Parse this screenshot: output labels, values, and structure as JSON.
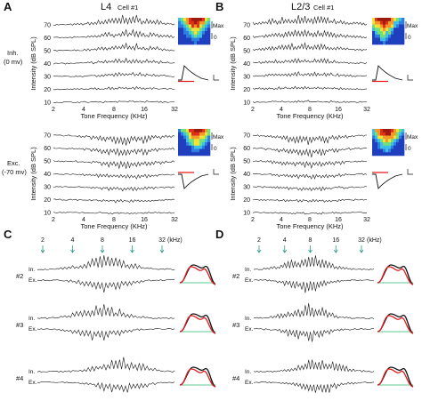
{
  "panels": {
    "A": {
      "letter": "A",
      "title": "L4",
      "subtitle": "Cell #1"
    },
    "B": {
      "letter": "B",
      "title": "L2/3",
      "subtitle": "Cell #1"
    },
    "C": {
      "letter": "C"
    },
    "D": {
      "letter": "D"
    }
  },
  "row_labels": {
    "inh_line1": "Inh.",
    "inh_line2": "(0 mv)",
    "exc_line1": "Exc.",
    "exc_line2": "(-70 mv)"
  },
  "axis": {
    "ylabel": "Intensity (dB SPL)",
    "xlabel": "Tone Frequency (KHz)",
    "y_ticks": [
      "70",
      "60",
      "50",
      "40",
      "30",
      "20",
      "10"
    ],
    "x_ticks": [
      "2",
      "4",
      "8",
      "16",
      "32"
    ]
  },
  "heatmap": {
    "max_label": "Max",
    "zero_label": "0"
  },
  "freq_markers": {
    "labels": [
      "2",
      "4",
      "8",
      "16",
      "32"
    ],
    "unit": "(kHz)"
  },
  "cells": {
    "C": [
      "#2",
      "#3",
      "#4"
    ],
    "D": [
      "#2",
      "#3",
      "#4"
    ]
  },
  "trace_labels": {
    "inh": "In.",
    "exc": "Ex."
  },
  "colors": {
    "heatmap_low": "#1f3fbf",
    "trace": "#1a1a1a",
    "inh_curve": "#e31a1c",
    "exc_curve": "#111111",
    "baseline": "#2bb673",
    "arrow": "#2e9a8a"
  }
}
